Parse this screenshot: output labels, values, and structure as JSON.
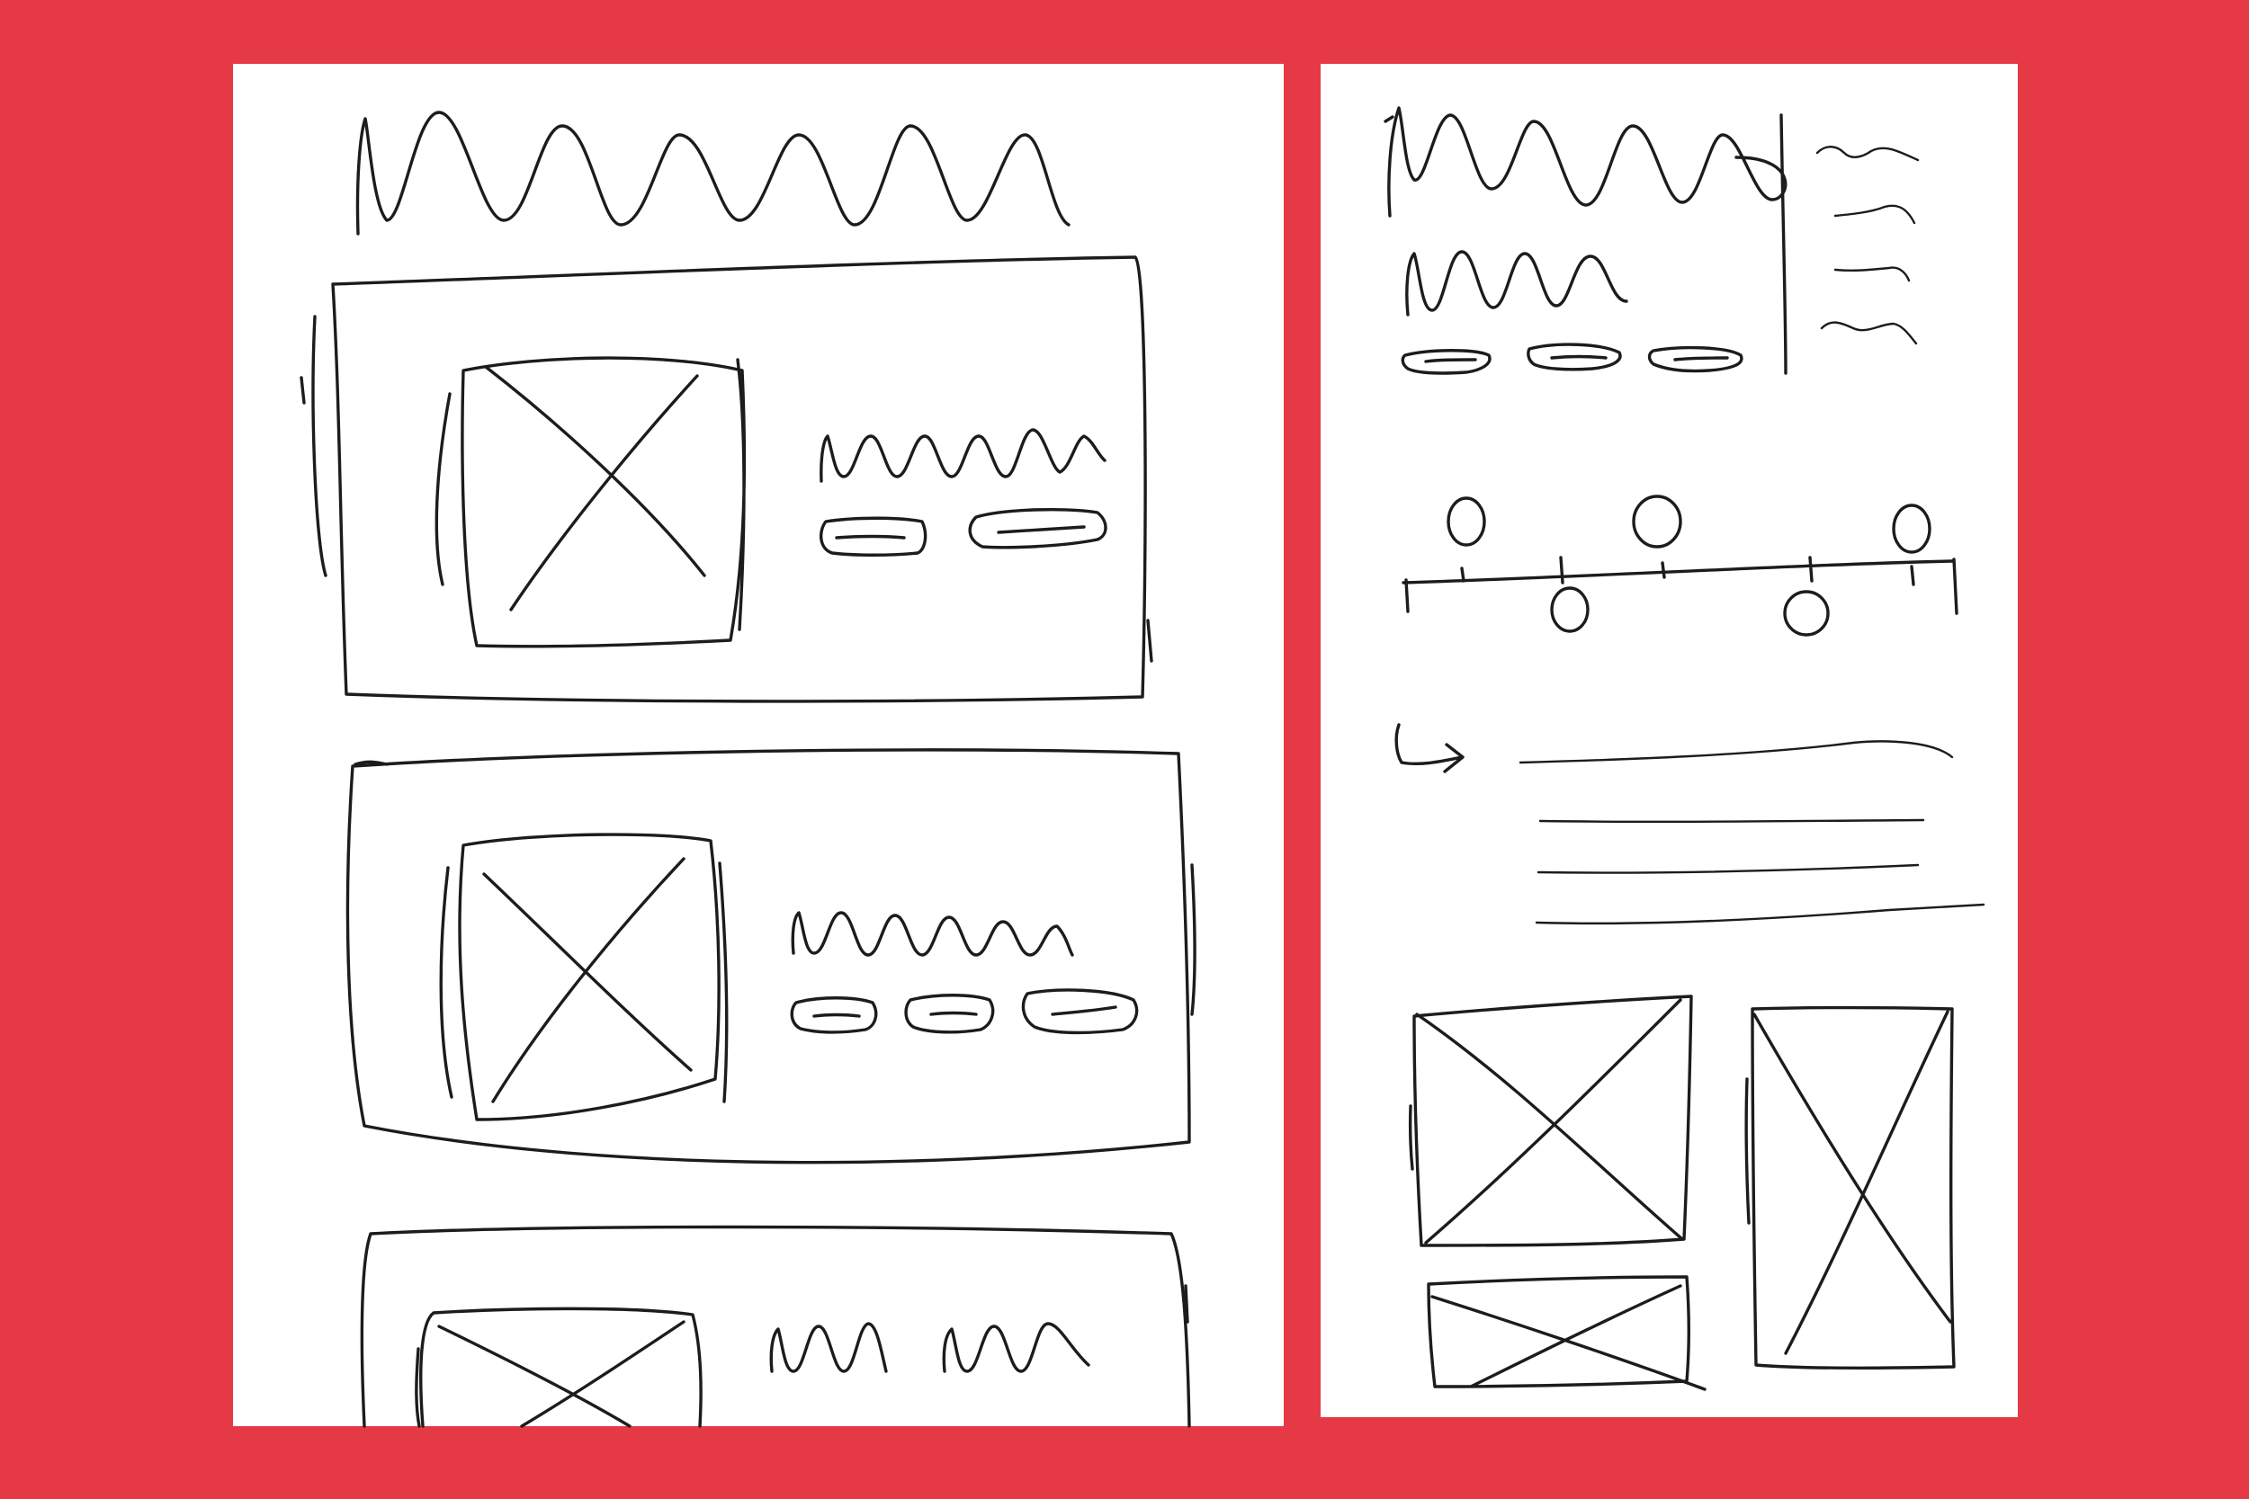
{
  "colors": {
    "background": "#E63946",
    "paper": "#FFFFFF",
    "ink": "#1C1C1C"
  },
  "left_sheet": {
    "heading_scribble": "squiggle-heading",
    "cards": [
      {
        "icon": "image-placeholder-icon",
        "pill_count": 2
      },
      {
        "icon": "image-placeholder-icon",
        "pill_count": 3
      },
      {
        "icon": "image-placeholder-icon",
        "pill_count": 0
      }
    ]
  },
  "right_sheet": {
    "header": {
      "title_scribble": "squiggle-heading",
      "subtitle_scribble": "squiggle-subheading",
      "pill_count": 3,
      "side_list_count": 4
    },
    "timeline": {
      "icon": "timeline-icon",
      "node_count": 5
    },
    "text_block": {
      "icon": "arrow-return-icon",
      "line_count": 4
    },
    "gallery": {
      "icon": "image-placeholder-icon",
      "tile_count": 3
    }
  }
}
